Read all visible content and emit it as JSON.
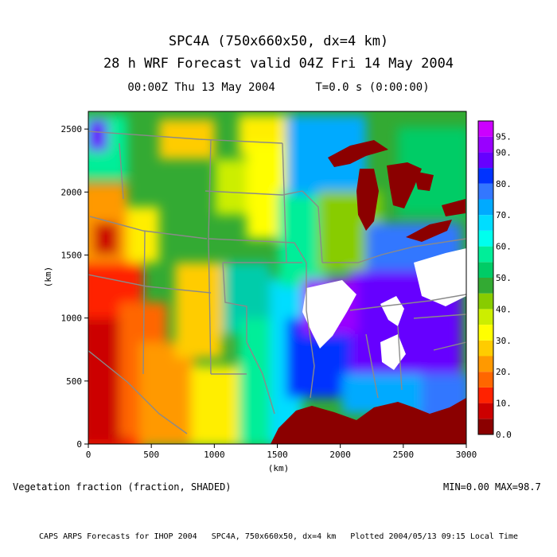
{
  "titles": {
    "line1": "SPC4A (750x660x50, dx=4 km)",
    "line2": "28 h WRF Forecast valid 04Z Fri 14 May 2004",
    "line3": "00:00Z Thu 13 May 2004      T=0.0 s (0:00:00)"
  },
  "field_caption": "Vegetation fraction (fraction, SHADED)",
  "min_max": "MIN=0.00 MAX=98.7",
  "footer": "CAPS ARPS Forecasts for IHOP 2004   SPC4A, 750x660x50, dx=4 km   Plotted 2004/05/13 09:15 Local Time",
  "chart_data": {
    "type": "heatmap",
    "title": "SPC4A (750x660x50, dx=4 km)",
    "subtitle": "28 h WRF Forecast valid 04Z Fri 14 May 2004",
    "xlabel": "(km)",
    "ylabel": "(km)",
    "xlim": [
      0,
      3000
    ],
    "ylim": [
      0,
      2640
    ],
    "x_ticks": [
      "0",
      "500",
      "1000",
      "1500",
      "2000",
      "2500",
      "3000"
    ],
    "y_ticks": [
      "0",
      "500",
      "1000",
      "1500",
      "2000",
      "2500"
    ],
    "x_tick_values": [
      0,
      500,
      1000,
      1500,
      2000,
      2500,
      3000
    ],
    "y_tick_values": [
      0,
      500,
      1000,
      1500,
      2000,
      2500
    ],
    "colorbar": {
      "labels": [
        "0.0",
        "10.",
        "20.",
        "30.",
        "40.",
        "50.",
        "60.",
        "70.",
        "80.",
        "90.",
        "95."
      ],
      "levels": [
        0,
        5,
        10,
        15,
        20,
        25,
        30,
        35,
        40,
        45,
        50,
        55,
        60,
        65,
        70,
        75,
        80,
        85,
        90,
        95,
        100
      ],
      "colors": [
        "#8b0000",
        "#cc0000",
        "#ff2200",
        "#ff6600",
        "#ff9900",
        "#ffcc00",
        "#ffff00",
        "#ccee00",
        "#88cc00",
        "#33aa33",
        "#00cc66",
        "#00ee99",
        "#00ffee",
        "#00ddff",
        "#00aaff",
        "#3377ff",
        "#0033ff",
        "#6600ff",
        "#9900ff",
        "#cc00ff"
      ]
    },
    "grid": false,
    "min": 0.0,
    "max": 98.7
  }
}
